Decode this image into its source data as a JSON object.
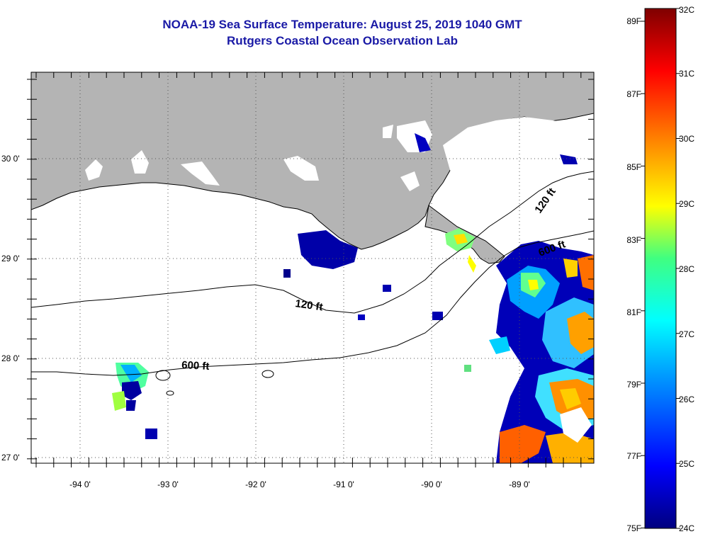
{
  "header": {
    "title": "NOAA-19 Sea Surface Temperature:  August 25, 2019 1040 GMT",
    "subtitle": "Rutgers Coastal Ocean Observation Lab"
  },
  "map": {
    "lon_labels": [
      "-94 0'",
      "-93 0'",
      "-92 0'",
      "-91 0'",
      "-90 0'",
      "-89 0'"
    ],
    "lat_labels": [
      "30 0'",
      "29 0'",
      "28 0'",
      "27 0'"
    ],
    "contour_labels": [
      "120 ft",
      "600 ft",
      "120 ft",
      "600 ft"
    ],
    "colors": {
      "land": "#b4b4b4",
      "cloud": "#ffffff",
      "coast": "#000000"
    }
  },
  "colorbar": {
    "fahrenheit_labels": [
      "89F",
      "87F",
      "85F",
      "83F",
      "81F",
      "79F",
      "77F",
      "75F"
    ],
    "celsius_labels": [
      "32C",
      "31C",
      "30C",
      "29C",
      "28C",
      "27C",
      "26C",
      "25C",
      "24C"
    ]
  }
}
